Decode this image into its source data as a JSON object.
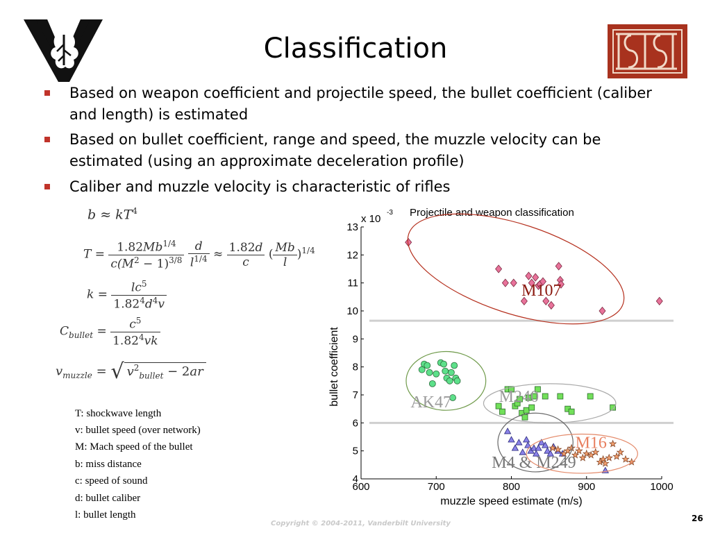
{
  "slide": {
    "title": "Classification",
    "bullets": [
      "Based on weapon coefficient and projectile speed, the bullet coefficient (caliber and length) is estimated",
      "Based on bullet coefficient, range and speed, the muzzle velocity can be estimated (using an approximate deceleration profile)",
      "Caliber and muzzle velocity is characteristic of rifles"
    ],
    "legend": [
      "T: shockwave length",
      "v: bullet speed (over network)",
      "M: Mach speed of the bullet",
      "b: miss distance",
      "c: speed of sound",
      "d: bullet caliber",
      "l: bullet length"
    ],
    "copyright": "Copyright © 2004-2011, Vanderbilt University",
    "page_number": "26"
  },
  "colors": {
    "bullet_marker": "#c0332a",
    "logo_isis_bg": "#a8321e",
    "m107": "#e8729a",
    "ak47": "#5de08a",
    "m240": "#72e05a",
    "m4": "#8a82e8",
    "m16": "#f2a070"
  },
  "chart_data": {
    "type": "scatter",
    "title": "Projectile and weapon classification",
    "xlabel": "muzzle speed estimate (m/s)",
    "ylabel": "bullet coefficient",
    "y_multiplier": "x 10",
    "y_multiplier_exp": "-3",
    "xlim": [
      600,
      1000
    ],
    "ylim": [
      4,
      13
    ],
    "xticks": [
      600,
      700,
      800,
      900,
      1000
    ],
    "yticks": [
      4,
      5,
      6,
      7,
      8,
      9,
      10,
      11,
      12,
      13
    ],
    "grid": false,
    "separators_y": [
      9.65,
      6.0
    ],
    "series": [
      {
        "name": "M107",
        "marker": "diamond",
        "color": "#e8729a",
        "ellipse": {
          "cx": 806,
          "cy": 11.5,
          "rx": 150,
          "ry": 1.6,
          "stroke": "#b5301e"
        },
        "label_pos": [
          840,
          10.75
        ],
        "label_color": "#8b1a10",
        "points": [
          [
            663,
            12.45
          ],
          [
            783,
            11.5
          ],
          [
            792,
            11.0
          ],
          [
            803,
            11.0
          ],
          [
            817,
            10.35
          ],
          [
            823,
            11.25
          ],
          [
            827,
            11.0
          ],
          [
            832,
            11.2
          ],
          [
            836,
            10.9
          ],
          [
            838,
            10.95
          ],
          [
            842,
            11.05
          ],
          [
            846,
            10.35
          ],
          [
            853,
            10.2
          ],
          [
            863,
            11.6
          ],
          [
            865,
            11.1
          ],
          [
            866,
            10.95
          ],
          [
            921,
            10.0
          ],
          [
            997,
            10.35
          ]
        ]
      },
      {
        "name": "AK47",
        "marker": "circle",
        "color": "#5de08a",
        "ellipse": {
          "cx": 713,
          "cy": 7.5,
          "rx": 53,
          "ry": 1.05,
          "stroke": "#6f9a4a"
        },
        "label_pos": [
          693,
          6.75
        ],
        "label_color": "#9a9a9a",
        "points": [
          [
            681,
            7.9
          ],
          [
            684,
            8.1
          ],
          [
            688,
            8.05
          ],
          [
            691,
            7.8
          ],
          [
            695,
            7.4
          ],
          [
            700,
            7.75
          ],
          [
            706,
            8.15
          ],
          [
            710,
            8.1
          ],
          [
            712,
            7.85
          ],
          [
            714,
            7.6
          ],
          [
            718,
            7.5
          ],
          [
            720,
            7.8
          ],
          [
            724,
            8.05
          ],
          [
            726,
            7.6
          ],
          [
            728,
            7.5
          ],
          [
            722,
            6.9
          ]
        ]
      },
      {
        "name": "M240",
        "marker": "square",
        "color": "#72e05a",
        "ellipse": {
          "cx": 851,
          "cy": 6.7,
          "rx": 88,
          "ry": 0.7,
          "stroke": "#aaaaaa"
        },
        "label_pos": [
          810,
          6.95
        ],
        "label_color": "#9a9a9a",
        "points": [
          [
            783,
            6.6
          ],
          [
            788,
            6.4
          ],
          [
            795,
            7.2
          ],
          [
            800,
            7.2
          ],
          [
            805,
            6.6
          ],
          [
            808,
            6.7
          ],
          [
            811,
            6.85
          ],
          [
            814,
            6.35
          ],
          [
            818,
            6.2
          ],
          [
            820,
            6.45
          ],
          [
            823,
            6.9
          ],
          [
            827,
            6.55
          ],
          [
            830,
            6.95
          ],
          [
            835,
            7.2
          ],
          [
            845,
            6.95
          ],
          [
            865,
            6.95
          ],
          [
            875,
            6.5
          ],
          [
            880,
            6.4
          ],
          [
            905,
            6.95
          ],
          [
            935,
            6.55
          ]
        ]
      },
      {
        "name": "M4 & M249",
        "marker": "triangle",
        "color": "#8a82e8",
        "ellipse": {
          "cx": 832,
          "cy": 5.3,
          "rx": 50,
          "ry": 1.05,
          "stroke": "#666666"
        },
        "label_pos": [
          830,
          4.6
        ],
        "label_color": "#777777",
        "points": [
          [
            795,
            5.7
          ],
          [
            800,
            5.4
          ],
          [
            805,
            5.1
          ],
          [
            810,
            5.3
          ],
          [
            815,
            4.95
          ],
          [
            820,
            5.4
          ],
          [
            822,
            5.2
          ],
          [
            826,
            5.0
          ],
          [
            830,
            5.1
          ],
          [
            833,
            4.9
          ],
          [
            836,
            5.1
          ],
          [
            840,
            5.3
          ],
          [
            845,
            5.2
          ],
          [
            848,
            5.0
          ],
          [
            852,
            4.9
          ],
          [
            856,
            5.15
          ],
          [
            862,
            5.0
          ],
          [
            868,
            4.9
          ],
          [
            925,
            4.3
          ]
        ]
      },
      {
        "name": "M16",
        "marker": "star",
        "color": "#f2a070",
        "ellipse": {
          "cx": 894,
          "cy": 4.9,
          "rx": 74,
          "ry": 0.7,
          "stroke": "#e48a6a"
        },
        "label_pos": [
          906,
          5.3
        ],
        "label_color": "#e88060",
        "points": [
          [
            855,
            5.1
          ],
          [
            862,
            5.05
          ],
          [
            870,
            4.9
          ],
          [
            875,
            5.0
          ],
          [
            880,
            5.1
          ],
          [
            885,
            4.85
          ],
          [
            890,
            5.0
          ],
          [
            895,
            4.75
          ],
          [
            900,
            4.9
          ],
          [
            906,
            4.85
          ],
          [
            912,
            4.95
          ],
          [
            918,
            4.6
          ],
          [
            922,
            4.7
          ],
          [
            925,
            4.55
          ],
          [
            930,
            4.75
          ],
          [
            935,
            5.25
          ],
          [
            940,
            4.8
          ],
          [
            945,
            4.95
          ],
          [
            952,
            4.7
          ],
          [
            960,
            4.6
          ]
        ]
      }
    ]
  }
}
